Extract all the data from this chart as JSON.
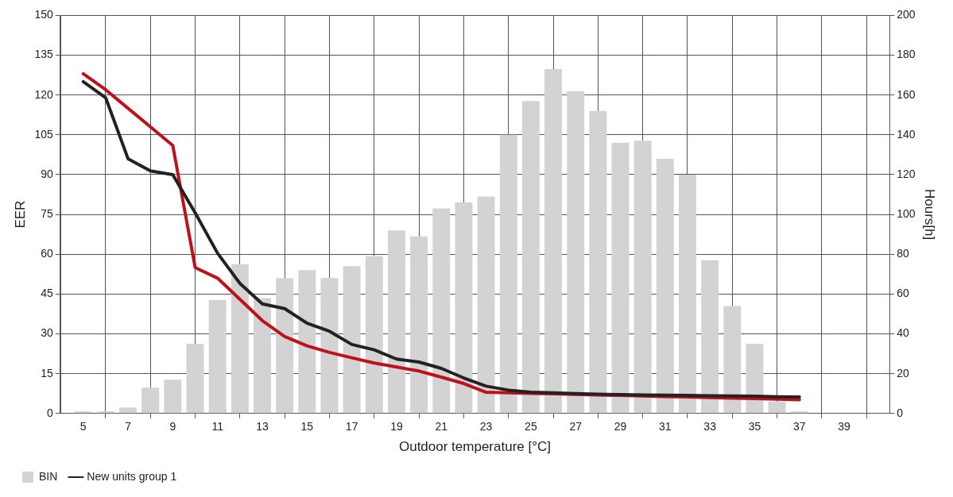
{
  "chart_data": {
    "type": "bar",
    "xlabel": "Outdoor temperature [°C]",
    "ylabel": "EER",
    "y2label": "Hours[h]",
    "x": [
      5,
      6,
      7,
      8,
      9,
      10,
      11,
      12,
      13,
      14,
      15,
      16,
      17,
      18,
      19,
      20,
      21,
      22,
      23,
      24,
      25,
      26,
      27,
      28,
      29,
      30,
      31,
      32,
      33,
      34,
      35,
      36,
      37
    ],
    "series": [
      {
        "name": "BIN",
        "axis": "y2",
        "color": "#d3d3d3",
        "values": [
          1,
          1,
          3,
          13,
          17,
          35,
          57,
          75,
          58,
          68,
          72,
          68,
          74,
          79,
          92,
          89,
          103,
          106,
          109,
          140,
          157,
          173,
          162,
          152,
          136,
          137,
          128,
          120,
          77,
          54,
          35,
          6,
          1
        ]
      },
      {
        "type": "line",
        "axis": "y",
        "color": "#c0101a",
        "values": [
          128,
          122,
          115,
          108,
          101,
          55,
          51,
          43,
          35,
          29,
          25.5,
          23,
          21,
          19,
          17.5,
          16,
          13.7,
          11.3,
          8,
          7.8,
          7.6,
          7.4,
          7.2,
          7,
          6.8,
          6.6,
          6.4,
          6.2,
          6,
          5.8,
          5.6,
          5.4,
          5.2
        ]
      },
      {
        "name": "New units group 1",
        "type": "line",
        "axis": "y",
        "color": "#222222",
        "values": [
          125,
          119,
          96,
          91.4,
          90,
          75.6,
          60.4,
          49,
          41.3,
          39.5,
          34,
          31,
          26,
          24,
          20.5,
          19.4,
          17,
          13.4,
          10.3,
          8.8,
          8,
          7.8,
          7.5,
          7.3,
          7.1,
          7,
          6.9,
          6.8,
          6.7,
          6.6,
          6.5,
          6.3,
          6.2
        ]
      }
    ],
    "xlim": [
      5,
      40
    ],
    "xticks": [
      5,
      7,
      9,
      11,
      13,
      15,
      17,
      19,
      21,
      23,
      25,
      27,
      29,
      31,
      33,
      35,
      37,
      39
    ],
    "ylim": [
      0,
      150
    ],
    "yticks": [
      0,
      15,
      30,
      45,
      60,
      75,
      90,
      105,
      120,
      135,
      150
    ],
    "y2lim": [
      0,
      200
    ],
    "y2ticks": [
      0,
      20,
      40,
      60,
      80,
      100,
      120,
      140,
      160,
      180,
      200
    ],
    "grid": true,
    "legend": "bottom left"
  }
}
